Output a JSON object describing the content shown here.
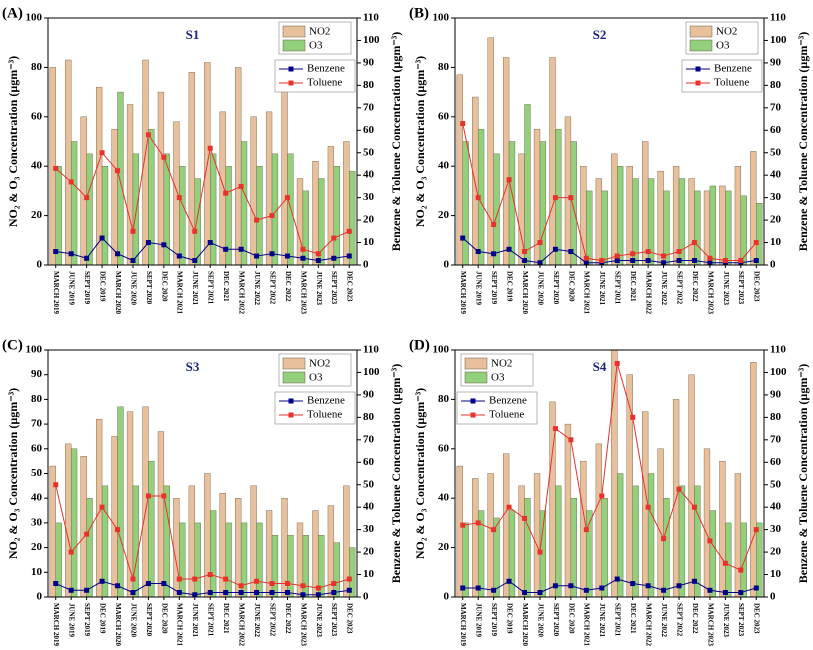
{
  "chart_data": [
    {
      "type": "combo",
      "panel": "(A)",
      "title": "S1",
      "ylabel": "NO₂ & O₃ Concentration (µgm⁻³)",
      "y2label": "Benzene & Toluene Concentration (µgm⁻³)",
      "categories": [
        "MARCH 2019",
        "JUNE 2019",
        "SEPT 2019",
        "DEC 2019",
        "MARCH 2020",
        "JUNE 2020",
        "SEPT 2020",
        "DEC 2020",
        "MARCH 2021",
        "JUNE 2021",
        "SEPT 2021",
        "DEC 2021",
        "MARCH 2022",
        "JUNE 2022",
        "SEPT 2022",
        "DEC 2022",
        "MARCH 2023",
        "JUNE 2023",
        "SEPT 2023",
        "DEC 2023"
      ],
      "ylim": [
        0,
        100
      ],
      "yticks": [
        0,
        20,
        40,
        60,
        80,
        100
      ],
      "y2lim": [
        0,
        110
      ],
      "y2ticks": [
        0,
        10,
        20,
        30,
        40,
        50,
        60,
        70,
        80,
        90,
        100,
        110
      ],
      "legend": "upper right",
      "series": [
        {
          "name": "NO2",
          "color": "#e8c19c",
          "values": [
            80,
            83,
            60,
            72,
            55,
            65,
            83,
            70,
            58,
            78,
            82,
            62,
            80,
            60,
            62,
            80,
            35,
            42,
            48,
            50
          ]
        },
        {
          "name": "O3",
          "color": "#93d07c",
          "values": [
            40,
            50,
            45,
            40,
            70,
            45,
            55,
            45,
            40,
            35,
            45,
            40,
            50,
            40,
            45,
            45,
            30,
            35,
            40,
            38
          ]
        },
        {
          "name": "Benzene",
          "color": "#00008b",
          "axis": "y2",
          "values": [
            6,
            5,
            3,
            12,
            5,
            2,
            10,
            9,
            4,
            2,
            10,
            7,
            7,
            4,
            5,
            4,
            3,
            2,
            3,
            4
          ]
        },
        {
          "name": "Toluene",
          "color": "#e8322c",
          "axis": "y2",
          "values": [
            43,
            37,
            30,
            50,
            42,
            15,
            58,
            48,
            30,
            15,
            52,
            32,
            35,
            20,
            22,
            30,
            7,
            5,
            12,
            15
          ]
        }
      ]
    },
    {
      "type": "combo",
      "panel": "(B)",
      "title": "S2",
      "ylabel": "NO₂ & O₃ Concentration (µgm⁻³)",
      "y2label": "Benzene & Toluene Concentration (µgm⁻³)",
      "categories": [
        "MARCH 2019",
        "JUNE 2019",
        "SEPT 2019",
        "DEC 2019",
        "MARCH 2020",
        "JUNE 2020",
        "SEPT 2020",
        "DEC 2020",
        "MARCH 2021",
        "JUNE 2021",
        "SEPT 2021",
        "DEC 2021",
        "MARCH 2022",
        "JUNE 2022",
        "SEPT 2022",
        "DEC 2022",
        "MARCH 2023",
        "JUNE 2023",
        "SEPT 2023",
        "DEC 2023"
      ],
      "ylim": [
        0,
        100
      ],
      "yticks": [
        0,
        20,
        40,
        60,
        80,
        100
      ],
      "y2lim": [
        0,
        110
      ],
      "y2ticks": [
        0,
        10,
        20,
        30,
        40,
        50,
        60,
        70,
        80,
        90,
        100,
        110
      ],
      "legend": "upper right",
      "series": [
        {
          "name": "NO2",
          "color": "#e8c19c",
          "values": [
            77,
            68,
            92,
            84,
            45,
            55,
            84,
            60,
            40,
            35,
            45,
            40,
            50,
            38,
            40,
            35,
            30,
            32,
            40,
            46
          ]
        },
        {
          "name": "O3",
          "color": "#93d07c",
          "values": [
            50,
            55,
            45,
            50,
            65,
            50,
            55,
            50,
            30,
            30,
            40,
            35,
            35,
            30,
            35,
            30,
            32,
            30,
            28,
            25
          ]
        },
        {
          "name": "Benzene",
          "color": "#00008b",
          "axis": "y2",
          "values": [
            12,
            6,
            5,
            7,
            2,
            1,
            7,
            6,
            1,
            1,
            2,
            2,
            2,
            1,
            2,
            2,
            1,
            1,
            1,
            2
          ]
        },
        {
          "name": "Toluene",
          "color": "#e8322c",
          "axis": "y2",
          "values": [
            63,
            30,
            18,
            38,
            6,
            10,
            30,
            30,
            3,
            2,
            4,
            5,
            6,
            4,
            6,
            10,
            3,
            2,
            2,
            10
          ]
        }
      ]
    },
    {
      "type": "combo",
      "panel": "(C)",
      "title": "S3",
      "ylabel": "NO₂ & O₃ Concentration (µgm⁻³)",
      "y2label": "Benzene & Toluene Concentration (µgm⁻³)",
      "categories": [
        "MARCH 2019",
        "JUNE 2019",
        "SEPT 2019",
        "DEC 2019",
        "MARCH 2020",
        "JUNE 2020",
        "SEPT 2020",
        "DEC 2020",
        "MARCH 2021",
        "JUNE 2021",
        "SEPT 2021",
        "DEC 2021",
        "MARCH 2022",
        "JUNE 2022",
        "SEPT 2022",
        "DEC 2022",
        "MARCH 2023",
        "JUNE 2023",
        "SEPT 2023",
        "DEC 2023"
      ],
      "ylim": [
        0,
        100
      ],
      "yticks": [
        0,
        10,
        20,
        30,
        40,
        50,
        60,
        70,
        80,
        90,
        100
      ],
      "y2lim": [
        0,
        110
      ],
      "y2ticks": [
        0,
        10,
        20,
        30,
        40,
        50,
        60,
        70,
        80,
        90,
        100,
        110
      ],
      "legend": "upper right",
      "series": [
        {
          "name": "NO2",
          "color": "#e8c19c",
          "values": [
            53,
            62,
            57,
            72,
            65,
            75,
            77,
            67,
            40,
            45,
            50,
            42,
            40,
            45,
            35,
            40,
            30,
            35,
            37,
            45
          ]
        },
        {
          "name": "O3",
          "color": "#93d07c",
          "values": [
            30,
            60,
            40,
            45,
            77,
            45,
            55,
            45,
            30,
            30,
            35,
            30,
            30,
            30,
            25,
            25,
            25,
            25,
            22,
            20
          ]
        },
        {
          "name": "Benzene",
          "color": "#00008b",
          "axis": "y2",
          "values": [
            6,
            3,
            3,
            7,
            5,
            2,
            6,
            6,
            2,
            1,
            2,
            2,
            2,
            2,
            2,
            2,
            1,
            1,
            2,
            3
          ]
        },
        {
          "name": "Toluene",
          "color": "#e8322c",
          "axis": "y2",
          "values": [
            50,
            20,
            28,
            40,
            30,
            8,
            45,
            45,
            8,
            8,
            10,
            8,
            5,
            7,
            6,
            6,
            5,
            4,
            6,
            8
          ]
        }
      ]
    },
    {
      "type": "combo",
      "panel": "(D)",
      "title": "S4",
      "ylabel": "NO₂ & O₃ Concentration (µgm⁻³)",
      "y2label": "Benzene & Toluene Concentration (µgm⁻³)",
      "categories": [
        "MARCH 2019",
        "JUNE 2019",
        "SEPT 2019",
        "DEC 2019",
        "MARCH 2020",
        "JUNE 2020",
        "SEPT 2020",
        "DEC 2020",
        "MARCH 2021",
        "JUNE 2021",
        "SEPT 2021",
        "DEC 2021",
        "MARCH 2022",
        "JUNE 2022",
        "SEPT 2022",
        "DEC 2022",
        "MARCH 2023",
        "JUNE 2023",
        "SEPT 2023",
        "DEC 2023"
      ],
      "ylim": [
        0,
        100
      ],
      "yticks": [
        0,
        20,
        40,
        60,
        80,
        100
      ],
      "y2lim": [
        0,
        110
      ],
      "y2ticks": [
        0,
        10,
        20,
        30,
        40,
        50,
        60,
        70,
        80,
        90,
        100,
        110
      ],
      "legend": "upper left",
      "series": [
        {
          "name": "NO2",
          "color": "#e8c19c",
          "values": [
            53,
            48,
            50,
            58,
            45,
            50,
            79,
            70,
            55,
            62,
            100,
            90,
            75,
            60,
            80,
            90,
            60,
            55,
            50,
            95
          ]
        },
        {
          "name": "O3",
          "color": "#93d07c",
          "values": [
            30,
            35,
            32,
            35,
            40,
            35,
            45,
            40,
            35,
            40,
            50,
            45,
            50,
            40,
            45,
            45,
            35,
            30,
            30,
            30
          ]
        },
        {
          "name": "Benzene",
          "color": "#00008b",
          "axis": "y2",
          "values": [
            4,
            4,
            3,
            7,
            2,
            2,
            5,
            5,
            3,
            4,
            8,
            6,
            5,
            3,
            5,
            7,
            3,
            2,
            2,
            4
          ]
        },
        {
          "name": "Toluene",
          "color": "#e8322c",
          "axis": "y2",
          "values": [
            32,
            33,
            30,
            40,
            35,
            20,
            75,
            70,
            30,
            45,
            104,
            80,
            40,
            26,
            48,
            40,
            25,
            15,
            12,
            30
          ]
        }
      ]
    }
  ]
}
